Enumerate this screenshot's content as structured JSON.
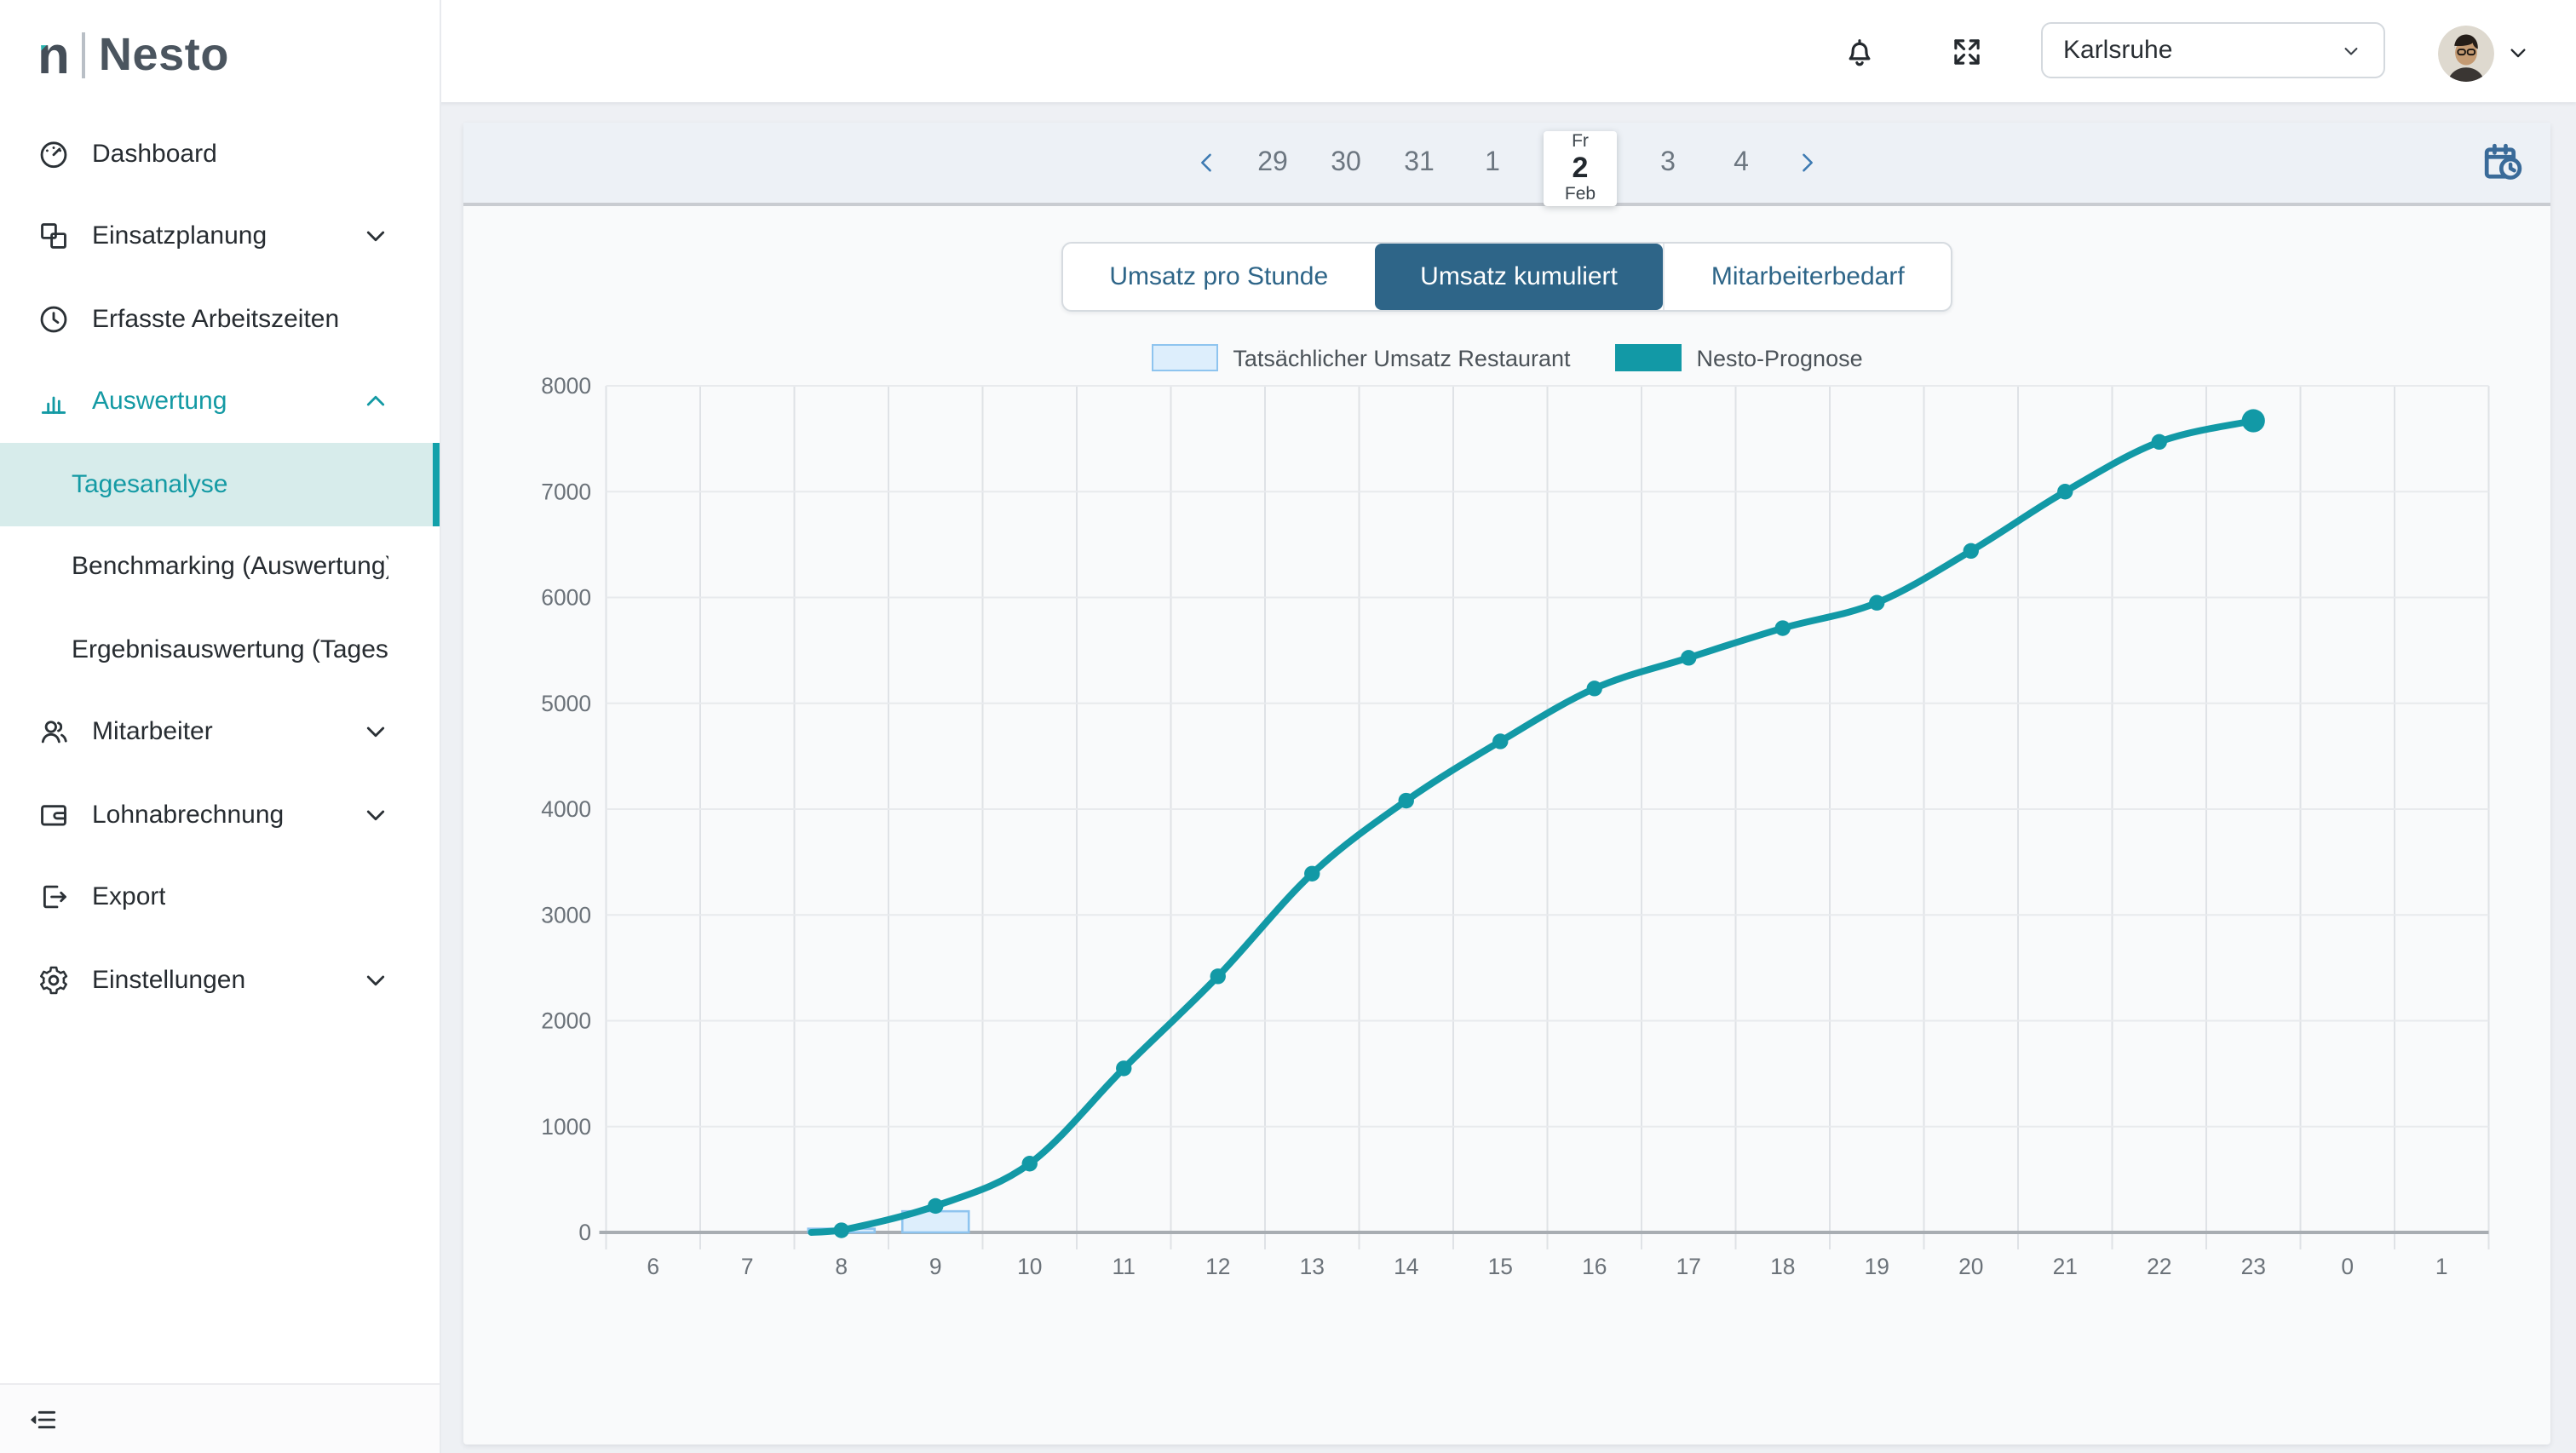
{
  "brand": {
    "mark": "n",
    "name": "Nesto"
  },
  "header": {
    "icons": [
      {
        "name": "bell-icon"
      },
      {
        "name": "expand-icon"
      }
    ],
    "location_select": {
      "value": "Karlsruhe",
      "chevron_icon": "chevron-down-icon"
    },
    "profile": {
      "avatar": "user-avatar",
      "chevron_icon": "chevron-down-icon"
    }
  },
  "sidebar": {
    "items": [
      {
        "label": "Dashboard",
        "icon": "dashboard-icon"
      },
      {
        "label": "Einsatzplanung",
        "icon": "planning-grid-icon",
        "chevron": "down"
      },
      {
        "label": "Erfasste Arbeitszeiten",
        "icon": "clock-icon"
      },
      {
        "label": "Auswertung",
        "icon": "bar-chart-icon",
        "chevron": "up",
        "teal": true
      },
      {
        "label": "Tagesanalyse",
        "sub": true,
        "selected": true
      },
      {
        "label": "Benchmarking (Auswertung)",
        "sub": true
      },
      {
        "label": "Ergebnisauswertung (Tagesau...",
        "sub": true
      },
      {
        "label": "Mitarbeiter",
        "icon": "people-icon",
        "chevron": "down"
      },
      {
        "label": "Lohnabrechnung",
        "icon": "wallet-icon",
        "chevron": "down"
      },
      {
        "label": "Export",
        "icon": "export-icon"
      },
      {
        "label": "Einstellungen",
        "icon": "gear-icon",
        "chevron": "down"
      }
    ],
    "collapse_icon": "collapse-sidebar-icon"
  },
  "date_nav": {
    "prev_icon": "chevron-left-icon",
    "next_icon": "chevron-right-icon",
    "calendar_icon": "calendar-clock-icon",
    "days": [
      {
        "day": "29"
      },
      {
        "day": "30"
      },
      {
        "day": "31"
      },
      {
        "day": "1"
      },
      {
        "day": "2",
        "weekday": "Fr",
        "month": "Feb",
        "selected": true
      },
      {
        "day": "3"
      },
      {
        "day": "4"
      }
    ]
  },
  "tabs": [
    {
      "label": "Umsatz pro Stunde",
      "active": false
    },
    {
      "label": "Umsatz kumuliert",
      "active": true
    },
    {
      "label": "Mitarbeiterbedarf",
      "active": false
    }
  ],
  "chart_data": {
    "type": "mixed",
    "x_labels": [
      "6",
      "7",
      "8",
      "9",
      "10",
      "11",
      "12",
      "13",
      "14",
      "15",
      "16",
      "17",
      "18",
      "19",
      "20",
      "21",
      "22",
      "23",
      "0",
      "1"
    ],
    "x_hours_start": 6,
    "ylim": [
      0,
      8000
    ],
    "ytick_step": 1000,
    "grid": true,
    "legend_position": "top",
    "series": [
      {
        "name": "Tatsächlicher Umsatz Restaurant",
        "type": "bar",
        "fill": "#ddeefc",
        "border": "#8ec4ef",
        "points": [
          {
            "hour": 8,
            "value": 35
          },
          {
            "hour": 9,
            "value": 200
          }
        ]
      },
      {
        "name": "Nesto-Prognose",
        "type": "line",
        "color": "#1299a6",
        "line_start": {
          "hour": 7.68,
          "value": 0
        },
        "points": [
          {
            "hour": 8,
            "value": 20
          },
          {
            "hour": 9,
            "value": 250
          },
          {
            "hour": 10,
            "value": 650
          },
          {
            "hour": 11,
            "value": 1550
          },
          {
            "hour": 12,
            "value": 2420
          },
          {
            "hour": 13,
            "value": 3390
          },
          {
            "hour": 14,
            "value": 4080
          },
          {
            "hour": 15,
            "value": 4640
          },
          {
            "hour": 16,
            "value": 5140
          },
          {
            "hour": 17,
            "value": 5430
          },
          {
            "hour": 18,
            "value": 5710
          },
          {
            "hour": 19,
            "value": 5950
          },
          {
            "hour": 20,
            "value": 6440
          },
          {
            "hour": 21,
            "value": 7000
          },
          {
            "hour": 22,
            "value": 7470
          },
          {
            "hour": 23,
            "value": 7670
          }
        ]
      }
    ]
  },
  "colors": {
    "accent_teal": "#12a1aa",
    "tab_blue": "#2e6588",
    "strip_bg": "#edf1f6",
    "sidebar_selected_bg": "#d7eceb",
    "date_chevron_blue": "#3d7ab2",
    "calendar_icon_blue": "#3a6b99"
  }
}
